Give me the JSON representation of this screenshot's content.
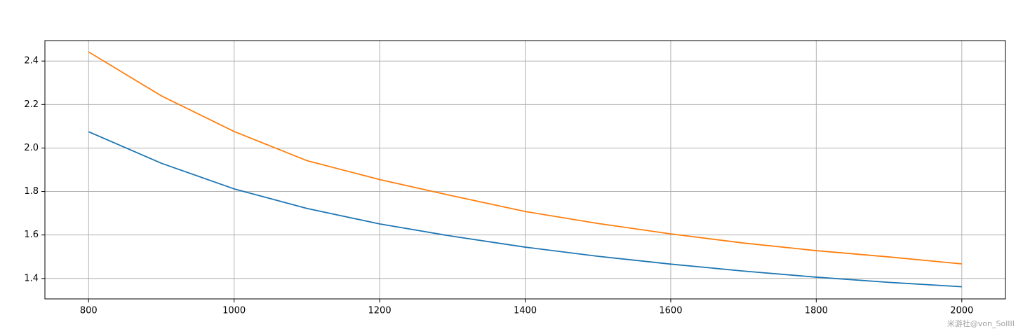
{
  "chart_data": {
    "type": "line",
    "x": [
      800,
      900,
      1000,
      1100,
      1200,
      1300,
      1400,
      1500,
      1600,
      1700,
      1800,
      1900,
      2000
    ],
    "series": [
      {
        "color": "#1f77b4",
        "values": [
          2.075,
          1.93,
          1.812,
          1.722,
          1.651,
          1.594,
          1.544,
          1.502,
          1.466,
          1.434,
          1.406,
          1.382,
          1.362
        ]
      },
      {
        "color": "#ff7f0e",
        "values": [
          2.442,
          2.24,
          2.076,
          1.942,
          1.855,
          1.78,
          1.708,
          1.653,
          1.605,
          1.563,
          1.528,
          1.499,
          1.467
        ]
      }
    ],
    "xlim": [
      740,
      2060
    ],
    "ylim": [
      1.306,
      2.494
    ],
    "xticks": [
      800,
      1000,
      1200,
      1400,
      1600,
      1800,
      2000
    ],
    "yticks": [
      1.4,
      1.6,
      1.8,
      {
        "value": 2,
        "label": "2.0"
      },
      2.2,
      2.4
    ],
    "grid": true,
    "watermark": "米游社@von_SolIII"
  }
}
